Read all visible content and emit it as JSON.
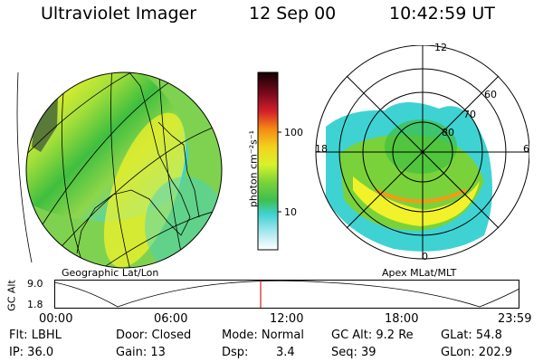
{
  "header": {
    "instrument": "Ultraviolet Imager",
    "date": "12 Sep 00",
    "time": "10:42:59 UT"
  },
  "left_panel": {
    "caption": "Geographic Lat/Lon"
  },
  "right_panel": {
    "caption": "Apex MLat/MLT",
    "mlt_labels": {
      "top": "12",
      "left": "18",
      "right": "6",
      "bottom": "0"
    },
    "mlat_labels": [
      "60",
      "70",
      "80"
    ]
  },
  "colorbar": {
    "unit_label": "photon cm⁻²s⁻¹",
    "ticks": [
      "100",
      "10"
    ]
  },
  "altitude_plot": {
    "ylabel": "GC Alt",
    "yticks": [
      "9.0",
      "1.8"
    ],
    "xticks": [
      "00:00",
      "06:00",
      "12:00",
      "18:00",
      "23:59"
    ]
  },
  "info": {
    "flt": "Flt: LBHL",
    "ip": "IP: 36.0",
    "door": "Door: Closed",
    "gain": "Gain: 13",
    "mode": "Mode: Normal",
    "dsp_label": "Dsp:",
    "dsp_value": "3.4",
    "gcalt": "GC Alt: 9.2 Re",
    "seq": "Seq: 39",
    "glat": "GLat: 54.8",
    "glon": "GLon: 202.9"
  },
  "colors": {
    "auroral_peak": "#1a0505",
    "auroral_red": "#d4202a",
    "auroral_orange": "#f59a14",
    "auroral_yellow": "#f2f22a",
    "auroral_green": "#3fbf3f",
    "auroral_cyan": "#3fd2d2",
    "time_marker": "#cc2222"
  }
}
